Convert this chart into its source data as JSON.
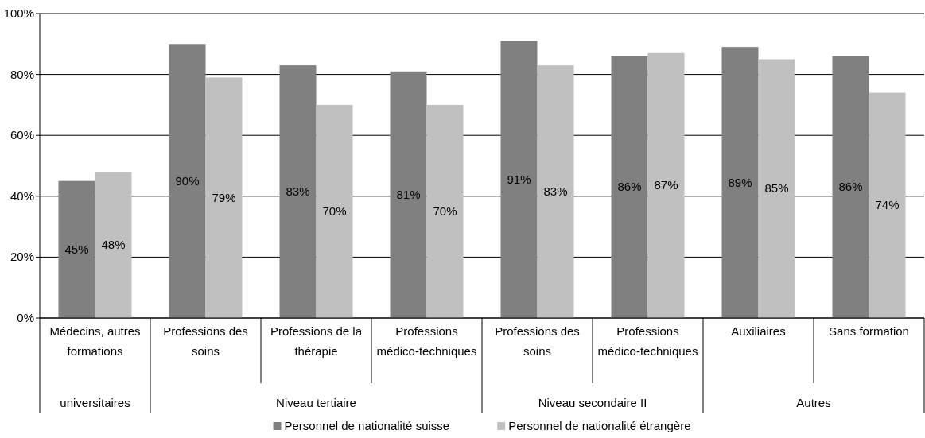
{
  "chart_data": {
    "type": "bar",
    "categories": [
      "Médecins, autres formations",
      "Professions des soins",
      "Professions de la thérapie",
      "Professions médico-techniques",
      "Professions des soins",
      "Professions médico-techniques",
      "Auxiliaires",
      "Sans formation"
    ],
    "series": [
      {
        "name": "Personnel de nationalité suisse",
        "color": "#808080",
        "values": [
          45,
          90,
          83,
          81,
          91,
          86,
          89,
          86
        ],
        "value_labels": [
          "45%",
          "90%",
          "83%",
          "81%",
          "91%",
          "86%",
          "89%",
          "86%"
        ]
      },
      {
        "name": "Personnel de nationalité étrangère",
        "color": "#c0c0c0",
        "values": [
          48,
          79,
          70,
          70,
          83,
          87,
          85,
          74
        ],
        "value_labels": [
          "48%",
          "79%",
          "70%",
          "70%",
          "83%",
          "87%",
          "85%",
          "74%"
        ]
      }
    ],
    "annotations": [
      "universitaires",
      "Niveau tertiaire",
      "Niveau secondaire II",
      "Autres"
    ],
    "ylim": [
      0,
      100
    ],
    "yticks": [
      {
        "value": 0,
        "label": "0%"
      },
      {
        "value": 20,
        "label": "20%"
      },
      {
        "value": 40,
        "label": "40%"
      },
      {
        "value": 60,
        "label": "60%"
      },
      {
        "value": 80,
        "label": "80%"
      },
      {
        "value": 100,
        "label": "100%"
      }
    ],
    "grid": "y",
    "legend": "bottom"
  }
}
